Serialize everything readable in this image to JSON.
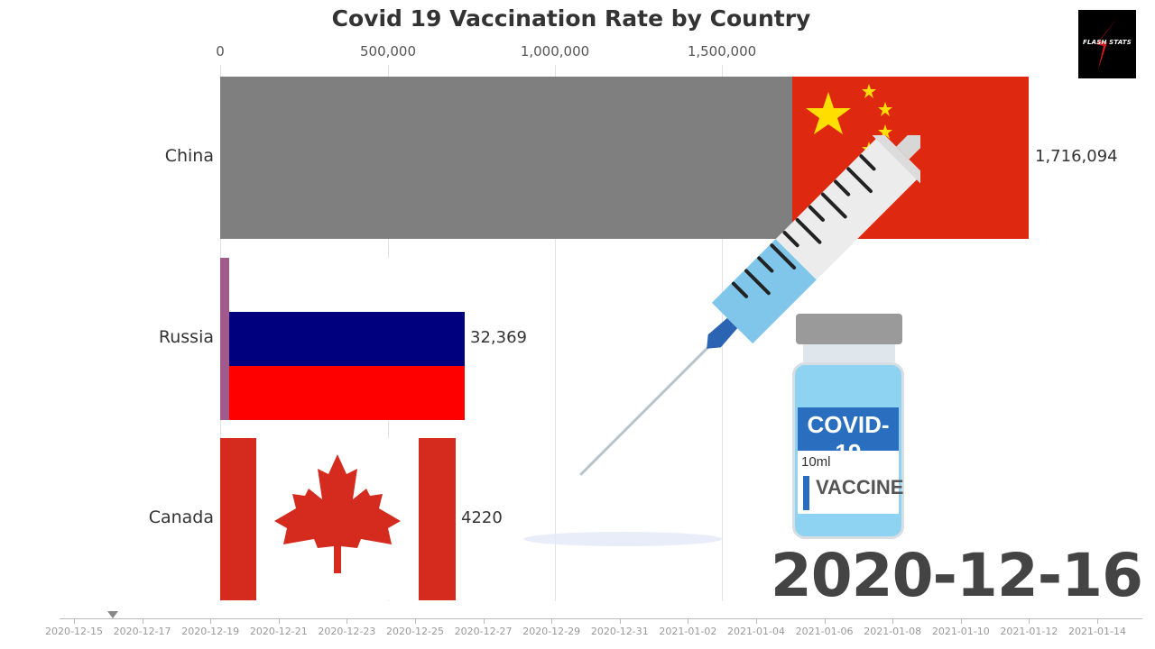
{
  "title": "Covid 19 Vaccination Rate by Country",
  "logo": {
    "text": "FLASH STATS",
    "icon": "lightning-bolt-icon"
  },
  "current_date": "2020-12-16",
  "axis": {
    "ticks": [
      "0",
      "500,000",
      "1,000,000",
      "1,500,000"
    ]
  },
  "bars": [
    {
      "country": "China",
      "value_label": "1,716,094",
      "bar_color": "#7f7f7f",
      "flag": "china-flag"
    },
    {
      "country": "Russia",
      "value_label": "32,369",
      "bar_color": "#a05a8c",
      "flag": "russia-flag"
    },
    {
      "country": "Canada",
      "value_label": "4220",
      "bar_color": "#d52b1e",
      "flag": "canada-flag"
    }
  ],
  "timeline": {
    "labels": [
      "2020-12-15",
      "2020-12-17",
      "2020-12-19",
      "2020-12-21",
      "2020-12-23",
      "2020-12-25",
      "2020-12-27",
      "2020-12-29",
      "2020-12-31",
      "2021-01-02",
      "2021-01-04",
      "2021-01-06",
      "2021-01-08",
      "2021-01-10",
      "2021-01-12",
      "2021-01-14"
    ]
  },
  "illustration": {
    "vial_title": "COVID-19",
    "vial_volume": "10ml",
    "vial_label": "VACCINE"
  },
  "chart_data": {
    "type": "bar",
    "orientation": "horizontal",
    "title": "Covid 19 Vaccination Rate by Country",
    "categories": [
      "China",
      "Russia",
      "Canada"
    ],
    "values": [
      1716094,
      32369,
      4220
    ],
    "xlabel": "",
    "ylabel": "",
    "xlim": [
      0,
      1700000
    ],
    "x_ticks": [
      0,
      500000,
      1000000,
      1500000
    ],
    "grid": true,
    "date": "2020-12-16",
    "timeline_range": [
      "2020-12-15",
      "2021-01-14"
    ]
  }
}
